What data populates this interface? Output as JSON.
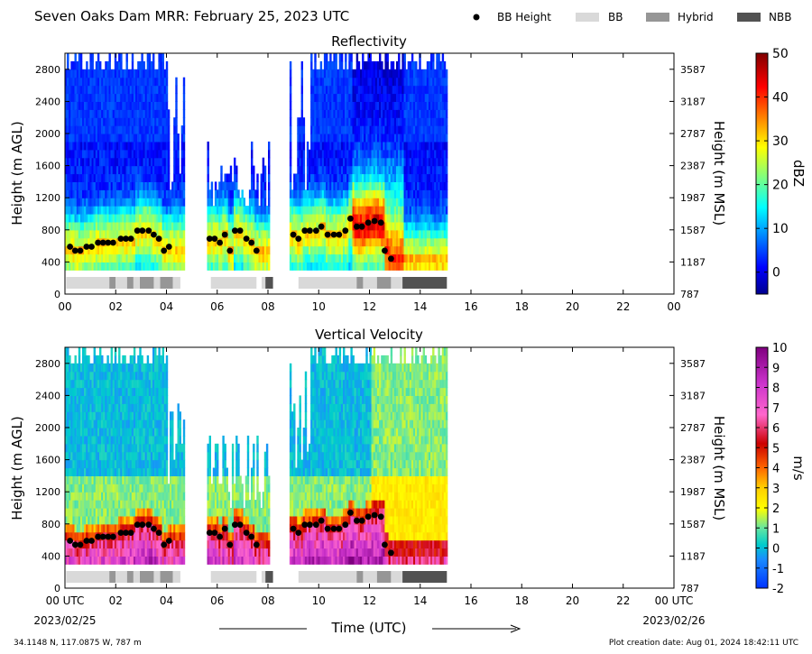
{
  "header": {
    "title": "Seven Oaks Dam MRR:  February 25, 2023 UTC",
    "legend": [
      {
        "label": "BB Height",
        "kind": "dot",
        "color": "#000000"
      },
      {
        "label": "BB",
        "kind": "box",
        "color": "#d9d9d9"
      },
      {
        "label": "Hybrid",
        "kind": "box",
        "color": "#969696"
      },
      {
        "label": "NBB",
        "kind": "box",
        "color": "#525252"
      }
    ]
  },
  "footer": {
    "location": "34.1148 N, 117.0875 W, 787 m",
    "creation": "Plot creation date: Aug 01, 2024 18:42:11 UTC",
    "start_date": "2023/02/25",
    "end_date": "2023/02/26",
    "time_label": "Time (UTC)"
  },
  "chart_data": [
    {
      "type": "heatmap",
      "title": "Reflectivity",
      "xlabel": "",
      "ylabel": "Height (m AGL)",
      "ylabel_right": "Height (m MSL)",
      "xlim": [
        0,
        24
      ],
      "ylim": [
        0,
        3000
      ],
      "xticks": [
        "00",
        "02",
        "04",
        "06",
        "08",
        "10",
        "12",
        "14",
        "16",
        "18",
        "20",
        "22",
        "00"
      ],
      "yticks": [
        0,
        400,
        800,
        1200,
        1600,
        2000,
        2400,
        2800
      ],
      "yticks_right": [
        "787",
        "1187",
        "1587",
        "1987",
        "2387",
        "2787",
        "3187",
        "3587"
      ],
      "colorbar": {
        "label": "dBZ",
        "min": -5,
        "max": 50,
        "ticks": [
          "0",
          "10",
          "20",
          "30",
          "40",
          "50"
        ],
        "tick_values": [
          0,
          10,
          20,
          30,
          40,
          50
        ],
        "colormap": "jet"
      },
      "bb_height_points": [
        [
          0.2,
          590
        ],
        [
          0.4,
          540
        ],
        [
          0.6,
          540
        ],
        [
          0.85,
          590
        ],
        [
          1.05,
          590
        ],
        [
          1.3,
          640
        ],
        [
          1.5,
          640
        ],
        [
          1.7,
          640
        ],
        [
          1.9,
          640
        ],
        [
          2.2,
          690
        ],
        [
          2.4,
          690
        ],
        [
          2.6,
          690
        ],
        [
          2.85,
          790
        ],
        [
          3.05,
          790
        ],
        [
          3.3,
          790
        ],
        [
          3.5,
          740
        ],
        [
          3.7,
          690
        ],
        [
          3.9,
          540
        ],
        [
          4.1,
          590
        ],
        [
          5.7,
          690
        ],
        [
          5.9,
          690
        ],
        [
          6.1,
          640
        ],
        [
          6.3,
          740
        ],
        [
          6.5,
          540
        ],
        [
          6.7,
          790
        ],
        [
          6.9,
          790
        ],
        [
          7.15,
          690
        ],
        [
          7.35,
          640
        ],
        [
          7.55,
          540
        ],
        [
          9.0,
          740
        ],
        [
          9.2,
          690
        ],
        [
          9.45,
          790
        ],
        [
          9.65,
          790
        ],
        [
          9.9,
          790
        ],
        [
          10.1,
          840
        ],
        [
          10.35,
          740
        ],
        [
          10.6,
          740
        ],
        [
          10.8,
          740
        ],
        [
          11.05,
          790
        ],
        [
          11.25,
          940
        ],
        [
          11.5,
          840
        ],
        [
          11.7,
          840
        ],
        [
          11.95,
          890
        ],
        [
          12.2,
          910
        ],
        [
          12.45,
          890
        ],
        [
          12.6,
          540
        ],
        [
          12.85,
          440
        ]
      ],
      "bb_type_segments": [
        {
          "start": 0.05,
          "end": 1.75,
          "type": "BB"
        },
        {
          "start": 1.75,
          "end": 2.0,
          "type": "Hybrid"
        },
        {
          "start": 2.0,
          "end": 2.45,
          "type": "BB"
        },
        {
          "start": 2.45,
          "end": 2.7,
          "type": "Hybrid"
        },
        {
          "start": 2.7,
          "end": 2.95,
          "type": "BB"
        },
        {
          "start": 2.95,
          "end": 3.5,
          "type": "Hybrid"
        },
        {
          "start": 3.5,
          "end": 3.75,
          "type": "BB"
        },
        {
          "start": 3.75,
          "end": 4.25,
          "type": "Hybrid"
        },
        {
          "start": 4.25,
          "end": 4.55,
          "type": "BB"
        },
        {
          "start": 5.75,
          "end": 7.55,
          "type": "BB"
        },
        {
          "start": 7.75,
          "end": 7.9,
          "type": "BB"
        },
        {
          "start": 7.9,
          "end": 8.2,
          "type": "NBB"
        },
        {
          "start": 9.2,
          "end": 11.5,
          "type": "BB"
        },
        {
          "start": 11.5,
          "end": 11.75,
          "type": "Hybrid"
        },
        {
          "start": 11.75,
          "end": 12.3,
          "type": "BB"
        },
        {
          "start": 12.3,
          "end": 12.85,
          "type": "Hybrid"
        },
        {
          "start": 12.85,
          "end": 13.3,
          "type": "BB"
        },
        {
          "start": 13.3,
          "end": 15.05,
          "type": "NBB"
        }
      ],
      "data_segments": [
        {
          "start": 0.0,
          "end": 4.7,
          "top": 3000
        },
        {
          "start": 5.6,
          "end": 8.05,
          "top": 1850
        },
        {
          "start": 8.85,
          "end": 15.05,
          "top": 3000
        }
      ],
      "value_profile": {
        "near_surface_min": 10,
        "bright_band_peak": 30,
        "aloft_min": 0,
        "late_event_peak": 42
      }
    },
    {
      "type": "heatmap",
      "title": "Vertical Velocity",
      "xlabel": "Time (UTC)",
      "ylabel": "Height (m AGL)",
      "ylabel_right": "Height (m MSL)",
      "xlim": [
        0,
        24
      ],
      "ylim": [
        0,
        3000
      ],
      "xticks": [
        "00 UTC",
        "02",
        "04",
        "06",
        "08",
        "10",
        "12",
        "14",
        "16",
        "18",
        "20",
        "22",
        "00 UTC"
      ],
      "yticks": [
        0,
        400,
        800,
        1200,
        1600,
        2000,
        2400,
        2800
      ],
      "yticks_right": [
        "787",
        "1187",
        "1587",
        "1987",
        "2387",
        "2787",
        "3187",
        "3587"
      ],
      "colorbar": {
        "label": "m/s",
        "min": -2,
        "max": 10,
        "ticks": [
          "-2",
          "-1",
          "0",
          "1",
          "2",
          "3",
          "4",
          "5",
          "6",
          "7",
          "8",
          "9",
          "10"
        ],
        "tick_values": [
          -2,
          -1,
          0,
          1,
          2,
          3,
          4,
          5,
          6,
          7,
          8,
          9,
          10
        ],
        "colormap": "velocity"
      },
      "bb_height_points": "same as Reflectivity",
      "bb_type_segments": "same as Reflectivity",
      "value_profile": {
        "aloft": 0,
        "bright_band_peak": 6,
        "below_band_max": 9
      }
    }
  ]
}
